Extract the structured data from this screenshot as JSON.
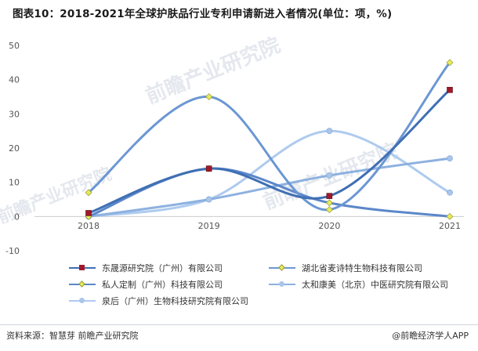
{
  "title": "图表10：2018-2021年全球护肤品行业专利申请新进入者情况(单位：项，%)",
  "source": "资料来源：智慧芽 前瞻产业研究院",
  "brand": "@前瞻经济学人APP",
  "watermark": "前瞻产业研究院",
  "chart_data": {
    "type": "line",
    "categories": [
      "2018",
      "2019",
      "2020",
      "2021"
    ],
    "ylim": [
      -10,
      50
    ],
    "yticks": [
      -10,
      0,
      10,
      20,
      30,
      40,
      50
    ],
    "grid": false,
    "legend_position": "bottom",
    "series": [
      {
        "name": "东晟源研究院（广州）有限公司",
        "values": [
          1,
          14,
          6,
          37
        ],
        "color": "#3f6fb3",
        "marker": "square-red"
      },
      {
        "name": "湖北省麦诗特生物科技有限公司",
        "values": [
          7,
          35,
          2,
          45
        ],
        "color": "#6b97d3",
        "marker": "diamond-yellow"
      },
      {
        "name": "私人定制（广州）科技有限公司",
        "values": [
          0,
          14,
          4,
          0
        ],
        "color": "#5b87c9",
        "marker": "diamond-yellow"
      },
      {
        "name": "太和康美（北京）中医研究院有限公司",
        "values": [
          0,
          5,
          12,
          17
        ],
        "color": "#8db1e0",
        "marker": "circle"
      },
      {
        "name": "泉后（广州）生物科技研究院有限公司",
        "values": [
          0,
          5,
          25,
          7
        ],
        "color": "#aecbee",
        "marker": "circle"
      }
    ]
  }
}
